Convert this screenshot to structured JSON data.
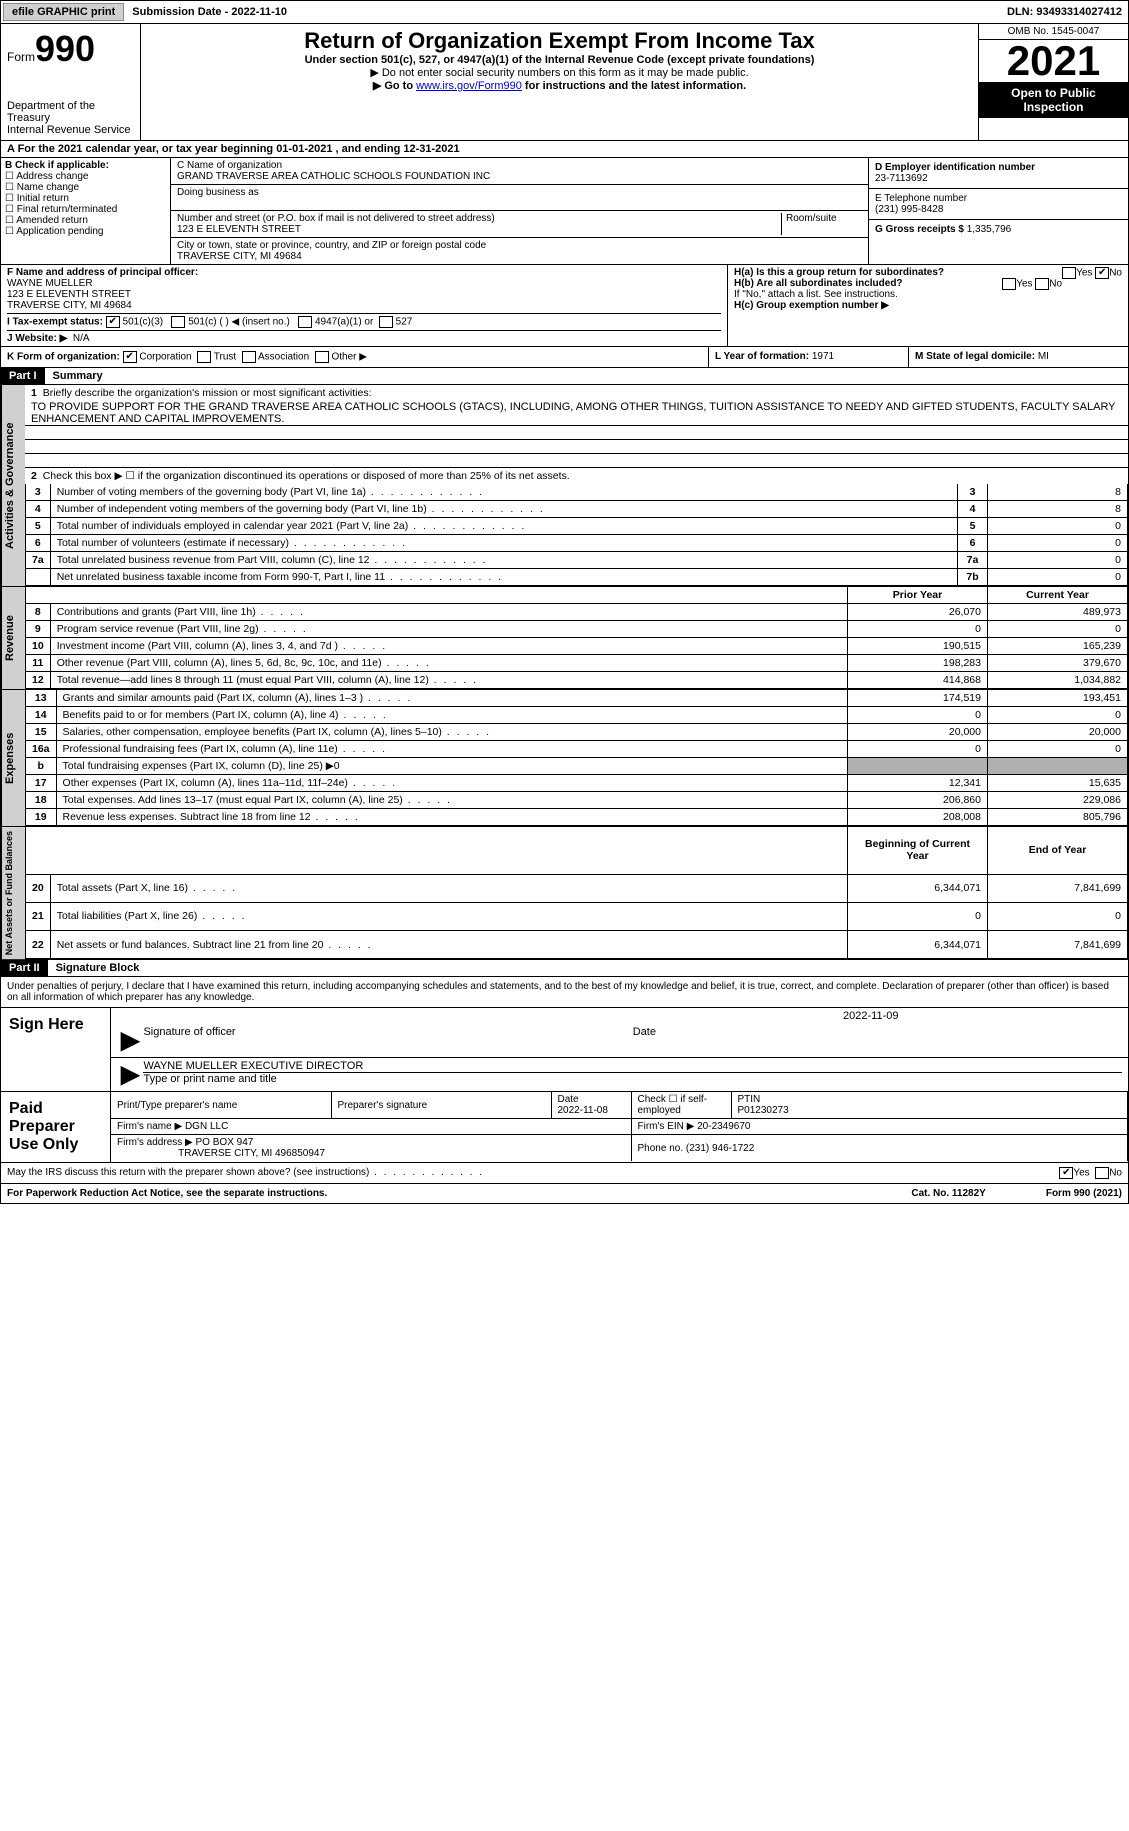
{
  "topbar": {
    "efile": "efile GRAPHIC print",
    "sub_lbl": "Submission Date - ",
    "sub_date": "2022-11-10",
    "dln_lbl": "DLN: ",
    "dln": "93493314027412"
  },
  "hdr": {
    "form_word": "Form",
    "form_no": "990",
    "dept": "Department of the Treasury\nInternal Revenue Service",
    "title": "Return of Organization Exempt From Income Tax",
    "sub": "Under section 501(c), 527, or 4947(a)(1) of the Internal Revenue Code (except private foundations)",
    "note1": "▶ Do not enter social security numbers on this form as it may be made public.",
    "note2_a": "▶ Go to ",
    "note2_link": "www.irs.gov/Form990",
    "note2_b": " for instructions and the latest information.",
    "omb": "OMB No. 1545-0047",
    "year": "2021",
    "open": "Open to Public Inspection"
  },
  "rowA": "A For the 2021 calendar year, or tax year beginning 01-01-2021    , and ending 12-31-2021",
  "secB": {
    "b_lbl": "B Check if applicable:",
    "opts": [
      "Address change",
      "Name change",
      "Initial return",
      "Final return/terminated",
      "Amended return",
      "Application pending"
    ],
    "c_lbl": "C Name of organization",
    "org": "GRAND TRAVERSE AREA CATHOLIC SCHOOLS FOUNDATION INC",
    "dba_lbl": "Doing business as",
    "addr_lbl": "Number and street (or P.O. box if mail is not delivered to street address)",
    "addr": "123 E ELEVENTH STREET",
    "room_lbl": "Room/suite",
    "city_lbl": "City or town, state or province, country, and ZIP or foreign postal code",
    "city": "TRAVERSE CITY, MI  49684",
    "d_lbl": "D Employer identification number",
    "ein": "23-7113692",
    "e_lbl": "E Telephone number",
    "phone": "(231) 995-8428",
    "g_lbl": "G Gross receipts $ ",
    "gross": "1,335,796"
  },
  "secF": {
    "f_lbl": "F Name and address of principal officer:",
    "name": "WAYNE MUELLER",
    "addr1": "123 E ELEVENTH STREET",
    "addr2": "TRAVERSE CITY, MI  49684",
    "i_lbl": "I   Tax-exempt status:",
    "i_501c3": "501(c)(3)",
    "i_501c": "501(c) (  ) ◀ (insert no.)",
    "i_4947": "4947(a)(1) or",
    "i_527": "527",
    "j_lbl": "J   Website: ▶",
    "j_val": "N/A",
    "ha": "H(a)  Is this a group return for subordinates?",
    "hb": "H(b)  Are all subordinates included?",
    "hb_note": "If \"No,\" attach a list. See instructions.",
    "hc": "H(c)  Group exemption number ▶",
    "yes": "Yes",
    "no": "No"
  },
  "rowK": {
    "k": "K Form of organization:",
    "corp": "Corporation",
    "trust": "Trust",
    "assoc": "Association",
    "other": "Other ▶",
    "l": "L Year of formation: ",
    "l_val": "1971",
    "m": "M State of legal domicile: ",
    "m_val": "MI"
  },
  "part1": {
    "hdr": "Part I",
    "title": "Summary",
    "vtab_ag": "Activities & Governance",
    "vtab_rev": "Revenue",
    "vtab_exp": "Expenses",
    "vtab_na": "Net Assets or Fund Balances",
    "l1": "Briefly describe the organization's mission or most significant activities:",
    "mission": "TO PROVIDE SUPPORT FOR THE GRAND TRAVERSE AREA CATHOLIC SCHOOLS (GTACS), INCLUDING, AMONG OTHER THINGS, TUITION ASSISTANCE TO NEEDY AND GIFTED STUDENTS, FACULTY SALARY ENHANCEMENT AND CAPITAL IMPROVEMENTS.",
    "l2": "Check this box ▶ ☐ if the organization discontinued its operations or disposed of more than 25% of its net assets.",
    "rows_ag": [
      {
        "n": "3",
        "t": "Number of voting members of the governing body (Part VI, line 1a)",
        "b": "3",
        "v": "8"
      },
      {
        "n": "4",
        "t": "Number of independent voting members of the governing body (Part VI, line 1b)",
        "b": "4",
        "v": "8"
      },
      {
        "n": "5",
        "t": "Total number of individuals employed in calendar year 2021 (Part V, line 2a)",
        "b": "5",
        "v": "0"
      },
      {
        "n": "6",
        "t": "Total number of volunteers (estimate if necessary)",
        "b": "6",
        "v": "0"
      },
      {
        "n": "7a",
        "t": "Total unrelated business revenue from Part VIII, column (C), line 12",
        "b": "7a",
        "v": "0"
      },
      {
        "n": "",
        "t": "Net unrelated business taxable income from Form 990-T, Part I, line 11",
        "b": "7b",
        "v": "0"
      }
    ],
    "col_prior": "Prior Year",
    "col_curr": "Current Year",
    "rows_rev": [
      {
        "n": "8",
        "t": "Contributions and grants (Part VIII, line 1h)",
        "p": "26,070",
        "c": "489,973"
      },
      {
        "n": "9",
        "t": "Program service revenue (Part VIII, line 2g)",
        "p": "0",
        "c": "0"
      },
      {
        "n": "10",
        "t": "Investment income (Part VIII, column (A), lines 3, 4, and 7d )",
        "p": "190,515",
        "c": "165,239"
      },
      {
        "n": "11",
        "t": "Other revenue (Part VIII, column (A), lines 5, 6d, 8c, 9c, 10c, and 11e)",
        "p": "198,283",
        "c": "379,670"
      },
      {
        "n": "12",
        "t": "Total revenue—add lines 8 through 11 (must equal Part VIII, column (A), line 12)",
        "p": "414,868",
        "c": "1,034,882"
      }
    ],
    "rows_exp": [
      {
        "n": "13",
        "t": "Grants and similar amounts paid (Part IX, column (A), lines 1–3 )",
        "p": "174,519",
        "c": "193,451"
      },
      {
        "n": "14",
        "t": "Benefits paid to or for members (Part IX, column (A), line 4)",
        "p": "0",
        "c": "0"
      },
      {
        "n": "15",
        "t": "Salaries, other compensation, employee benefits (Part IX, column (A), lines 5–10)",
        "p": "20,000",
        "c": "20,000"
      },
      {
        "n": "16a",
        "t": "Professional fundraising fees (Part IX, column (A), line 11e)",
        "p": "0",
        "c": "0"
      },
      {
        "n": "b",
        "t": "Total fundraising expenses (Part IX, column (D), line 25) ▶0",
        "shade": true
      },
      {
        "n": "17",
        "t": "Other expenses (Part IX, column (A), lines 11a–11d, 11f–24e)",
        "p": "12,341",
        "c": "15,635"
      },
      {
        "n": "18",
        "t": "Total expenses. Add lines 13–17 (must equal Part IX, column (A), line 25)",
        "p": "206,860",
        "c": "229,086"
      },
      {
        "n": "19",
        "t": "Revenue less expenses. Subtract line 18 from line 12",
        "p": "208,008",
        "c": "805,796"
      }
    ],
    "col_beg": "Beginning of Current Year",
    "col_end": "End of Year",
    "rows_na": [
      {
        "n": "20",
        "t": "Total assets (Part X, line 16)",
        "p": "6,344,071",
        "c": "7,841,699"
      },
      {
        "n": "21",
        "t": "Total liabilities (Part X, line 26)",
        "p": "0",
        "c": "0"
      },
      {
        "n": "22",
        "t": "Net assets or fund balances. Subtract line 21 from line 20",
        "p": "6,344,071",
        "c": "7,841,699"
      }
    ]
  },
  "part2": {
    "hdr": "Part II",
    "title": "Signature Block",
    "decl": "Under penalties of perjury, I declare that I have examined this return, including accompanying schedules and statements, and to the best of my knowledge and belief, it is true, correct, and complete. Declaration of preparer (other than officer) is based on all information of which preparer has any knowledge.",
    "sign_here": "Sign Here",
    "sig_off": "Signature of officer",
    "sig_date": "2022-11-09",
    "date_lbl": "Date",
    "name": "WAYNE MUELLER  EXECUTIVE DIRECTOR",
    "type_lbl": "Type or print name and title",
    "paid": "Paid Preparer Use Only",
    "pt_name_lbl": "Print/Type preparer's name",
    "pt_sig_lbl": "Preparer's signature",
    "pt_date_lbl": "Date",
    "pt_date": "2022-11-08",
    "pt_chk": "Check ☐ if self-employed",
    "ptin_lbl": "PTIN",
    "ptin": "P01230273",
    "firm_lbl": "Firm's name    ▶ ",
    "firm": "DGN LLC",
    "ein_lbl": "Firm's EIN ▶ ",
    "ein": "20-2349670",
    "addr_lbl": "Firm's address ▶ ",
    "addr": "PO BOX 947",
    "addr2": "TRAVERSE CITY, MI  496850947",
    "ph_lbl": "Phone no. ",
    "ph": "(231) 946-1722",
    "may": "May the IRS discuss this return with the preparer shown above? (see instructions)"
  },
  "foot": {
    "l": "For Paperwork Reduction Act Notice, see the separate instructions.",
    "c": "Cat. No. 11282Y",
    "r": "Form 990 (2021)"
  }
}
